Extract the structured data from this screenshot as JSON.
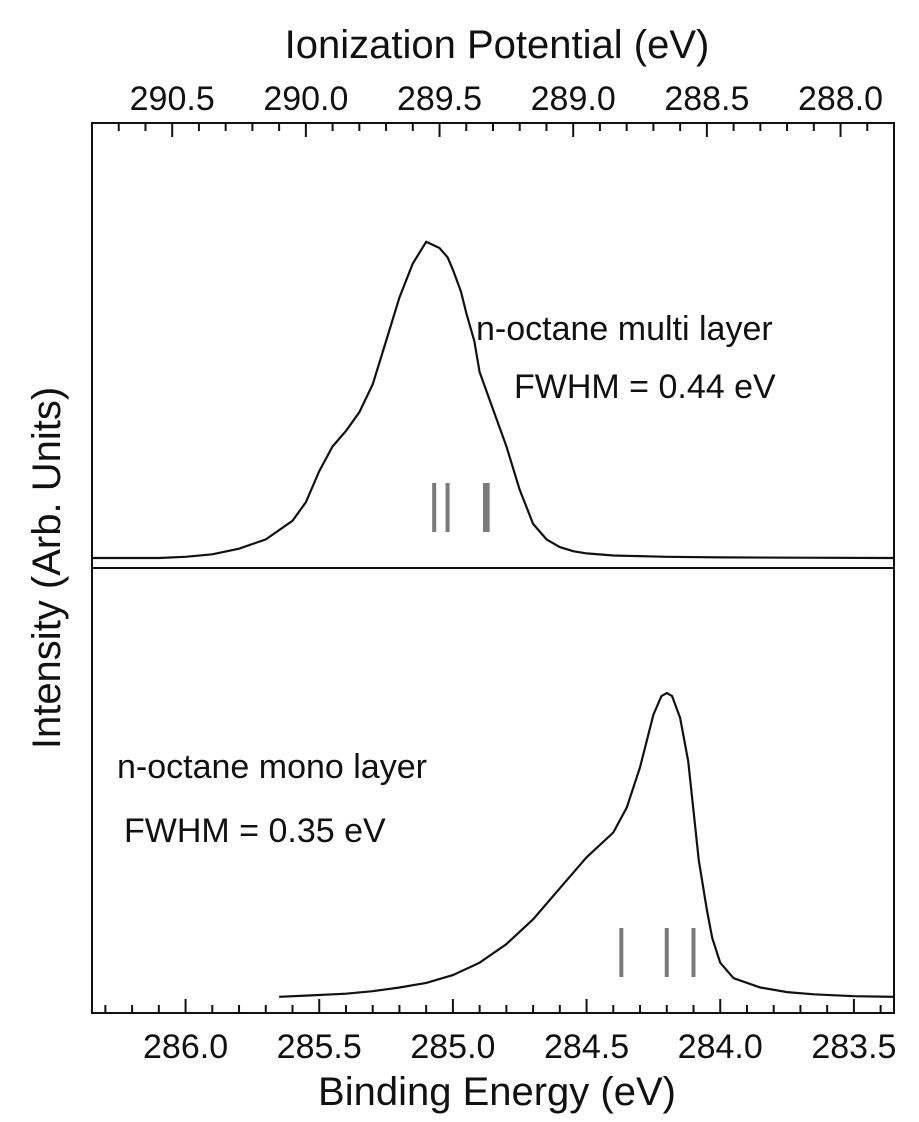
{
  "chart_data": {
    "type": "line",
    "title": "",
    "xlabel": "Binding Energy (eV)",
    "x2label": "Ionization Potential (eV)",
    "ylabel": "Intensity (Arb. Units)",
    "x_reversed": true,
    "xlim": [
      286.35,
      283.35
    ],
    "x2lim": [
      290.8,
      287.8
    ],
    "x_ticks": [
      286.0,
      285.5,
      285.0,
      284.5,
      284.0,
      283.5
    ],
    "x_tick_labels": [
      "286.0",
      "285.5",
      "285.0",
      "284.5",
      "284.0",
      "283.5"
    ],
    "x2_ticks": [
      290.5,
      290.0,
      289.5,
      289.0,
      288.5,
      288.0
    ],
    "x2_tick_labels": [
      "290.5",
      "290.0",
      "289.5",
      "289.0",
      "288.5",
      "288.0"
    ],
    "ylim": [
      0,
      2.0
    ],
    "grid": false,
    "series": [
      {
        "name": "",
        "offset": 1.0,
        "x": [
          286.35,
          286.1,
          286.0,
          285.9,
          285.8,
          285.7,
          285.6,
          285.55,
          285.5,
          285.45,
          285.4,
          285.35,
          285.3,
          285.25,
          285.2,
          285.15,
          285.1,
          285.05,
          285.02,
          285.0,
          284.97,
          284.95,
          284.92,
          284.9,
          284.85,
          284.8,
          284.75,
          284.7,
          284.65,
          284.6,
          284.55,
          284.5,
          284.4,
          284.2,
          284.0,
          283.7,
          283.35
        ],
        "y": [
          0.0,
          0.0,
          0.004,
          0.012,
          0.03,
          0.06,
          0.12,
          0.18,
          0.28,
          0.36,
          0.41,
          0.47,
          0.56,
          0.7,
          0.84,
          0.95,
          1.02,
          1.0,
          0.97,
          0.93,
          0.86,
          0.79,
          0.7,
          0.6,
          0.48,
          0.36,
          0.22,
          0.11,
          0.06,
          0.035,
          0.022,
          0.015,
          0.008,
          0.004,
          0.002,
          0.001,
          0.0
        ]
      },
      {
        "name": "",
        "offset": 0.0,
        "x": [
          285.65,
          285.55,
          285.4,
          285.3,
          285.2,
          285.1,
          285.0,
          284.9,
          284.8,
          284.7,
          284.6,
          284.5,
          284.45,
          284.4,
          284.35,
          284.3,
          284.25,
          284.22,
          284.2,
          284.18,
          284.15,
          284.12,
          284.1,
          284.08,
          284.05,
          284.03,
          284.0,
          283.95,
          283.85,
          283.75,
          283.65,
          283.5,
          283.35
        ],
        "y": [
          0.02,
          0.024,
          0.03,
          0.038,
          0.05,
          0.065,
          0.09,
          0.13,
          0.19,
          0.27,
          0.37,
          0.47,
          0.51,
          0.55,
          0.63,
          0.76,
          0.93,
          0.99,
          1.0,
          0.99,
          0.92,
          0.78,
          0.62,
          0.46,
          0.3,
          0.21,
          0.13,
          0.08,
          0.05,
          0.035,
          0.028,
          0.022,
          0.02
        ]
      }
    ],
    "annotations": [
      {
        "text": "n-octane multi layer",
        "series": 0
      },
      {
        "text": "FWHM = 0.44 eV",
        "series": 0
      },
      {
        "text": "n-octane mono layer",
        "series": 1
      },
      {
        "text": "FWHM = 0.35 eV",
        "series": 1
      }
    ],
    "markers": [
      {
        "series": 0,
        "x": [
          285.07,
          285.02,
          284.88,
          284.87
        ]
      },
      {
        "series": 1,
        "x": [
          284.37,
          284.2,
          284.1
        ]
      }
    ],
    "marker_color": "#7a7a7a",
    "line_color": "#111111"
  }
}
